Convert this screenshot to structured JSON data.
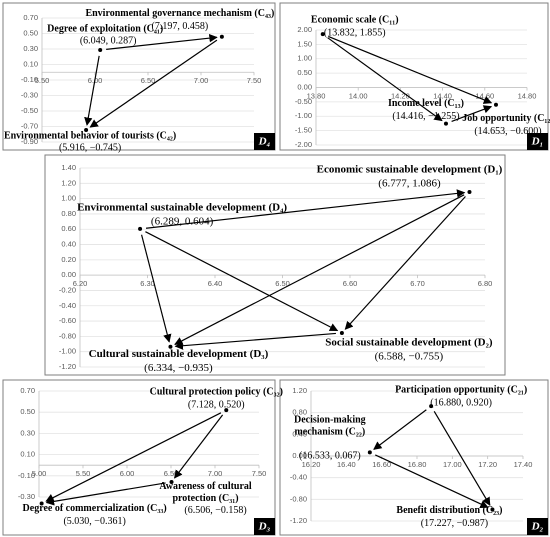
{
  "chart_data": [
    {
      "type": "scatter",
      "title": "D₄",
      "points": [
        {
          "name": [
            "Degree of exploitation (C₄₁)"
          ],
          "x": 6.049,
          "y": 0.287,
          "coord": "(6.049, 0.287)"
        },
        {
          "name": [
            "Environmental governance mechanism (C₄₃)"
          ],
          "x": 7.197,
          "y": 0.458,
          "coord": "(7.197, 0.458)"
        },
        {
          "name": [
            "Environmental behavior of tourists (C₄₂)"
          ],
          "x": 5.916,
          "y": -0.745,
          "coord": "(5.916, −0.745)"
        }
      ],
      "arrows": [
        [
          0,
          1
        ],
        [
          1,
          2
        ],
        [
          0,
          2
        ]
      ],
      "xlim": [
        5.5,
        7.5
      ],
      "ylim": [
        -0.9,
        0.7
      ],
      "xticks": [
        {
          "value": 5.5,
          "label": "5.50"
        },
        {
          "value": 6,
          "label": "6.00"
        },
        {
          "value": 6.5,
          "label": "6.50"
        },
        {
          "value": 7,
          "label": "7.00"
        },
        {
          "value": 7.5,
          "label": "7.50"
        }
      ],
      "yticks": [
        {
          "value": 0.7,
          "label": "0.70"
        },
        {
          "value": 0.5,
          "label": "0.50"
        },
        {
          "value": 0.3,
          "label": "0.30"
        },
        {
          "value": 0.1,
          "label": "0.10"
        },
        {
          "value": -0.1,
          "label": "-0.10"
        },
        {
          "value": -0.3,
          "label": "-0.30"
        },
        {
          "value": -0.5,
          "label": "-0.50"
        },
        {
          "value": -0.7,
          "label": "-0.70"
        },
        {
          "value": -0.9,
          "label": "-0.90"
        }
      ],
      "grid": true,
      "color": "#000000"
    },
    {
      "type": "scatter",
      "title": "D₁",
      "points": [
        {
          "name": [
            "Economic scale (C₁₁)"
          ],
          "x": 13.832,
          "y": 1.855,
          "coord": "(13.832, 1.855)"
        },
        {
          "name": [
            "Income level (C₁₃)"
          ],
          "x": 14.416,
          "y": -1.255,
          "coord": "(14.416, −1.255)"
        },
        {
          "name": [
            "Job opportunity (C₁₂)"
          ],
          "x": 14.653,
          "y": -0.6,
          "coord": "(14.653, −0.600)"
        }
      ],
      "arrows": [
        [
          0,
          1
        ],
        [
          0,
          2
        ],
        [
          1,
          2
        ]
      ],
      "xlim": [
        13.8,
        14.8
      ],
      "ylim": [
        -2,
        2
      ],
      "xticks": [
        {
          "value": 13.8,
          "label": "13.80"
        },
        {
          "value": 14,
          "label": "14.00"
        },
        {
          "value": 14.2,
          "label": "14.20"
        },
        {
          "value": 14.4,
          "label": "14.40"
        },
        {
          "value": 14.6,
          "label": "14.60"
        },
        {
          "value": 14.8,
          "label": "14.80"
        }
      ],
      "yticks": [
        {
          "value": 2,
          "label": "2.00"
        },
        {
          "value": 1.5,
          "label": "1.50"
        },
        {
          "value": 1,
          "label": "1.00"
        },
        {
          "value": 0.5,
          "label": "0.50"
        },
        {
          "value": 0,
          "label": "0.00"
        },
        {
          "value": -0.5,
          "label": "-0.50"
        },
        {
          "value": -1,
          "label": "-1.00"
        },
        {
          "value": -1.5,
          "label": "-1.50"
        },
        {
          "value": -2,
          "label": "-2.00"
        }
      ],
      "grid": true,
      "color": "#000000"
    },
    {
      "type": "scatter",
      "points": [
        {
          "name": [
            "Economic sustainable development (D₁)"
          ],
          "x": 6.777,
          "y": 1.086,
          "coord": "(6.777, 1.086)"
        },
        {
          "name": [
            "Environmental sustainable development (D₄)"
          ],
          "x": 6.289,
          "y": 0.604,
          "coord": "(6.289, 0.604)"
        },
        {
          "name": [
            "Cultural sustainable development (D₃)"
          ],
          "x": 6.334,
          "y": -0.935,
          "coord": "(6.334, −0.935)"
        },
        {
          "name": [
            "Social sustainable development (D₂)"
          ],
          "x": 6.588,
          "y": -0.755,
          "coord": "(6.588, −0.755)"
        }
      ],
      "arrows": [
        [
          1,
          0
        ],
        [
          1,
          2
        ],
        [
          1,
          3
        ],
        [
          0,
          2
        ],
        [
          0,
          3
        ],
        [
          3,
          2
        ]
      ],
      "xlim": [
        6.2,
        6.8
      ],
      "ylim": [
        -1.2,
        1.4
      ],
      "xticks": [
        {
          "value": 6.2,
          "label": "6.20"
        },
        {
          "value": 6.3,
          "label": "6.30"
        },
        {
          "value": 6.4,
          "label": "6.40"
        },
        {
          "value": 6.5,
          "label": "6.50"
        },
        {
          "value": 6.6,
          "label": "6.60"
        },
        {
          "value": 6.7,
          "label": "6.70"
        },
        {
          "value": 6.8,
          "label": "6.80"
        }
      ],
      "yticks": [
        {
          "value": 1.4,
          "label": "1.40"
        },
        {
          "value": 1.2,
          "label": "1.20"
        },
        {
          "value": 1,
          "label": "1.00"
        },
        {
          "value": 0.8,
          "label": "0.80"
        },
        {
          "value": 0.6,
          "label": "0.60"
        },
        {
          "value": 0.4,
          "label": "0.40"
        },
        {
          "value": 0.2,
          "label": "0.20"
        },
        {
          "value": 0,
          "label": "0.00"
        },
        {
          "value": -0.2,
          "label": "-0.20"
        },
        {
          "value": -0.4,
          "label": "-0.40"
        },
        {
          "value": -0.6,
          "label": "-0.60"
        },
        {
          "value": -0.8,
          "label": "-0.80"
        },
        {
          "value": -1,
          "label": "-1.00"
        },
        {
          "value": -1.2,
          "label": "-1.20"
        }
      ],
      "grid": true,
      "color": "#000000"
    },
    {
      "type": "scatter",
      "title": "D₃",
      "points": [
        {
          "name": [
            "Cultural protection policy (C₃₂)"
          ],
          "x": 7.128,
          "y": 0.52,
          "coord": "(7.128, 0.520)"
        },
        {
          "name": [
            "Awareness of cultural",
            "protection (C₃₁)"
          ],
          "x": 6.506,
          "y": -0.158,
          "coord": "(6.506, −0.158)"
        },
        {
          "name": [
            "Degree of commercialization (C₃₃)"
          ],
          "x": 5.03,
          "y": -0.361,
          "coord": "(5.030, −0.361)"
        }
      ],
      "arrows": [
        [
          0,
          2
        ],
        [
          0,
          1
        ],
        [
          1,
          2
        ]
      ],
      "xlim": [
        5,
        7.5
      ],
      "ylim": [
        -0.3,
        0.7
      ],
      "xticks": [
        {
          "value": 5,
          "label": "5.00"
        },
        {
          "value": 5.5,
          "label": "5.50"
        },
        {
          "value": 6,
          "label": "6.00"
        },
        {
          "value": 6.5,
          "label": "6.50"
        },
        {
          "value": 7,
          "label": "7.00"
        },
        {
          "value": 7.5,
          "label": "7.50"
        }
      ],
      "yticks": [
        {
          "value": 0.7,
          "label": "0.70"
        },
        {
          "value": 0.5,
          "label": "0.50"
        },
        {
          "value": 0.3,
          "label": "0.30"
        },
        {
          "value": 0.1,
          "label": "0.10"
        },
        {
          "value": -0.1,
          "label": "-0.10"
        },
        {
          "value": -0.3,
          "label": "-0.30"
        }
      ],
      "grid": true,
      "color": "#000000"
    },
    {
      "type": "scatter",
      "title": "D₂",
      "points": [
        {
          "name": [
            "Participation opportunity (C₂₁)"
          ],
          "x": 16.88,
          "y": 0.92,
          "coord": "(16.880, 0.920)"
        },
        {
          "name": [
            "Decision-making",
            "mechanism (C₂₂)"
          ],
          "x": 16.533,
          "y": 0.067,
          "coord": "(16.533, 0.067)"
        },
        {
          "name": [
            "Benefit distribution (C₂₃)"
          ],
          "x": 17.227,
          "y": -0.987,
          "coord": "(17.227, −0.987)"
        }
      ],
      "arrows": [
        [
          0,
          1
        ],
        [
          0,
          2
        ],
        [
          1,
          2
        ]
      ],
      "xlim": [
        16.2,
        17.4
      ],
      "ylim": [
        -1.2,
        1.2
      ],
      "xticks": [
        {
          "value": 16.2,
          "label": "16.20"
        },
        {
          "value": 16.4,
          "label": "16.40"
        },
        {
          "value": 16.6,
          "label": "16.60"
        },
        {
          "value": 16.8,
          "label": "16.80"
        },
        {
          "value": 17,
          "label": "17.00"
        },
        {
          "value": 17.2,
          "label": "17.20"
        },
        {
          "value": 17.4,
          "label": "17.40"
        }
      ],
      "yticks": [
        {
          "value": 1.2,
          "label": "1.20"
        },
        {
          "value": 0.8,
          "label": "0.80"
        },
        {
          "value": 0.4,
          "label": "0.40"
        },
        {
          "value": 0,
          "label": "0.00"
        },
        {
          "value": -0.4,
          "label": "-0.40"
        },
        {
          "value": -0.8,
          "label": "-0.80"
        },
        {
          "value": -1.2,
          "label": "-1.20"
        }
      ],
      "grid": true,
      "color": "#000000"
    }
  ]
}
